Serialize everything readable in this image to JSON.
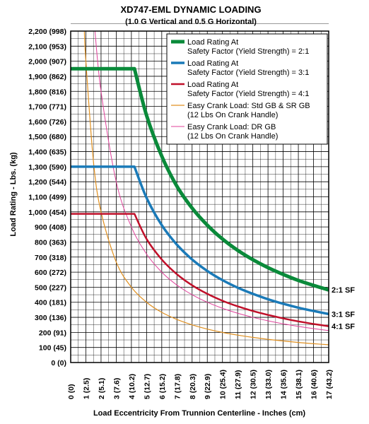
{
  "chart_data": {
    "type": "line",
    "title": "XD747-EML DYNAMIC LOADING",
    "subtitle": "(1.0 G Vertical and 0.5 G Horizontal)",
    "xlabel": "Load Eccentricity From Trunnion Centerline - Inches (cm)",
    "ylabel": "Load Rating - Lbs. (kg)",
    "xlim": [
      0,
      17
    ],
    "ylim": [
      0,
      2200
    ],
    "grid": true,
    "legend_position": "top-right",
    "x_ticks": [
      {
        "value": 0,
        "label": "0",
        "sub": "(0)"
      },
      {
        "value": 1,
        "label": "1",
        "sub": "(2.5)"
      },
      {
        "value": 2,
        "label": "2",
        "sub": "(5.1)"
      },
      {
        "value": 3,
        "label": "3",
        "sub": "(7.6)"
      },
      {
        "value": 4,
        "label": "4",
        "sub": "(10.2)"
      },
      {
        "value": 5,
        "label": "5",
        "sub": "(12.7)"
      },
      {
        "value": 6,
        "label": "6",
        "sub": "(15.2)"
      },
      {
        "value": 7,
        "label": "7",
        "sub": "(17.8)"
      },
      {
        "value": 8,
        "label": "8",
        "sub": "(20.3)"
      },
      {
        "value": 9,
        "label": "9",
        "sub": "(22.9)"
      },
      {
        "value": 10,
        "label": "10",
        "sub": "(25.4)"
      },
      {
        "value": 11,
        "label": "11",
        "sub": "(27.9)"
      },
      {
        "value": 12,
        "label": "12",
        "sub": "(30.5)"
      },
      {
        "value": 13,
        "label": "13",
        "sub": "(33.0)"
      },
      {
        "value": 14,
        "label": "14",
        "sub": "(35.6)"
      },
      {
        "value": 15,
        "label": "15",
        "sub": "(38.1)"
      },
      {
        "value": 16,
        "label": "16",
        "sub": "(40.6)"
      },
      {
        "value": 17,
        "label": "17",
        "sub": "(43.2)"
      }
    ],
    "y_ticks": [
      {
        "value": 0,
        "label": "0 (0)"
      },
      {
        "value": 100,
        "label": "100 (45)"
      },
      {
        "value": 200,
        "label": "200 (91)"
      },
      {
        "value": 300,
        "label": "300 (136)"
      },
      {
        "value": 400,
        "label": "400 (181)"
      },
      {
        "value": 500,
        "label": "500 (227)"
      },
      {
        "value": 600,
        "label": "600 (272)"
      },
      {
        "value": 700,
        "label": "700 (318)"
      },
      {
        "value": 800,
        "label": "800 (363)"
      },
      {
        "value": 900,
        "label": "900 (408)"
      },
      {
        "value": 1000,
        "label": "1,000 (454)"
      },
      {
        "value": 1100,
        "label": "1,100 (499)"
      },
      {
        "value": 1200,
        "label": "1,200 (544)"
      },
      {
        "value": 1300,
        "label": "1,300 (590)"
      },
      {
        "value": 1400,
        "label": "1,400 (635)"
      },
      {
        "value": 1500,
        "label": "1,500 (680)"
      },
      {
        "value": 1600,
        "label": "1,600 (726)"
      },
      {
        "value": 1700,
        "label": "1,700 (771)"
      },
      {
        "value": 1800,
        "label": "1,800 (816)"
      },
      {
        "value": 1900,
        "label": "1,900 (862)"
      },
      {
        "value": 2000,
        "label": "2,000 (907)"
      },
      {
        "value": 2100,
        "label": "2,100 (953)"
      },
      {
        "value": 2200,
        "label": "2,200 (998)"
      }
    ],
    "series": [
      {
        "name": "Load Rating At Safety Factor (Yield Strength) = 2:1",
        "color": "#0a8a3a",
        "end_label": "2:1 SF",
        "x": [
          0,
          4.2,
          5,
          6,
          7,
          8,
          9,
          10,
          11,
          12,
          13,
          14,
          15,
          16,
          17
        ],
        "y": [
          1950,
          1950,
          1640,
          1370,
          1170,
          1025,
          912,
          820,
          745,
          683,
          630,
          585,
          545,
          512,
          482
        ]
      },
      {
        "name": "Load Rating At Safety Factor (Yield Strength) = 3:1",
        "color": "#1a7ab8",
        "end_label": "3:1 SF",
        "x": [
          0,
          4.2,
          5,
          6,
          7,
          8,
          9,
          10,
          11,
          12,
          13,
          14,
          15,
          16,
          17
        ],
        "y": [
          1300,
          1300,
          1093,
          912,
          782,
          684,
          608,
          547,
          497,
          456,
          420,
          390,
          364,
          342,
          322
        ]
      },
      {
        "name": "Load Rating At Safety Factor (Yield Strength) = 4:1",
        "color": "#c0102a",
        "end_label": "4:1 SF",
        "x": [
          0,
          4.2,
          5,
          6,
          7,
          8,
          9,
          10,
          11,
          12,
          13,
          14,
          15,
          16,
          17
        ],
        "y": [
          987,
          987,
          820,
          684,
          586,
          513,
          456,
          410,
          373,
          342,
          316,
          293,
          273,
          256,
          241
        ]
      },
      {
        "name": "Easy Crank Load: Std GB & SR GB (12 Lbs On Crank Handle)",
        "color": "#e09020",
        "x": [
          0.9,
          1,
          1.5,
          2,
          3,
          4,
          5,
          6,
          7,
          8,
          9,
          10,
          11,
          12,
          13,
          14,
          15,
          16,
          17
        ],
        "y": [
          2200,
          2000,
          1333,
          1000,
          667,
          500,
          400,
          333,
          286,
          250,
          222,
          200,
          182,
          167,
          154,
          143,
          133,
          125,
          118
        ]
      },
      {
        "name": "Easy Crank Load: DR GB (12 Lbs On Crank Handle)",
        "color": "#e0409a",
        "x": [
          1.6,
          2,
          3,
          4,
          5,
          6,
          7,
          8,
          9,
          10,
          11,
          12,
          13,
          14,
          15,
          16,
          17
        ],
        "y": [
          2200,
          1800,
          1200,
          900,
          720,
          600,
          514,
          450,
          400,
          360,
          327,
          300,
          277,
          257,
          240,
          225,
          212
        ]
      }
    ],
    "legend_entries": [
      {
        "line1": "Load Rating At",
        "line2": "Safety Factor (Yield Strength) = 2:1",
        "color": "#0a8a3a",
        "width": 5
      },
      {
        "line1": "Load Rating At",
        "line2": "Safety Factor (Yield Strength) = 3:1",
        "color": "#1a7ab8",
        "width": 3.5
      },
      {
        "line1": "Load Rating At",
        "line2": "Safety Factor (Yield Strength) = 4:1",
        "color": "#c0102a",
        "width": 2.5
      },
      {
        "line1": "Easy Crank Load: Std GB & SR GB",
        "line2": "(12 Lbs On Crank Handle)",
        "color": "#e09020",
        "width": 1.2
      },
      {
        "line1": "Easy Crank Load: DR GB",
        "line2": "(12 Lbs On Crank Handle)",
        "color": "#e0409a",
        "width": 1
      }
    ]
  }
}
